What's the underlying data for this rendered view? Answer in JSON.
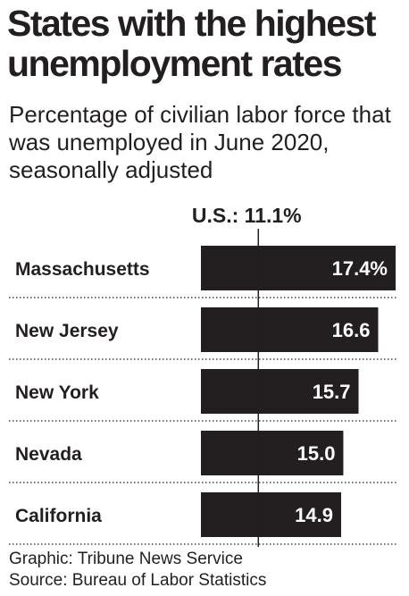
{
  "title": "States with the highest unemployment rates",
  "subtitle": "Percentage of civilian labor force that was unemployed in June 2020, seasonally adjusted",
  "reference": {
    "label": "U.S.: 11.1%",
    "value": 11.1
  },
  "chart_data": {
    "type": "bar",
    "orientation": "horizontal",
    "title": "States with the highest unemployment rates",
    "subtitle": "Percentage of civilian labor force that was unemployed in June 2020, seasonally adjusted",
    "categories": [
      "Massachusetts",
      "New Jersey",
      "New York",
      "Nevada",
      "California"
    ],
    "values": [
      17.4,
      16.6,
      15.7,
      15.0,
      14.9
    ],
    "value_labels": [
      "17.4%",
      "16.6",
      "15.7",
      "15.0",
      "14.9"
    ],
    "reference_line": {
      "label": "U.S.: 11.1%",
      "value": 11.1
    },
    "grid": false,
    "bar_color": "#231f20",
    "label_color": "#ffffff",
    "separator": "dotted"
  },
  "footer": {
    "credit": "Graphic: Tribune News Service",
    "source": "Source: Bureau of Labor Statistics"
  }
}
